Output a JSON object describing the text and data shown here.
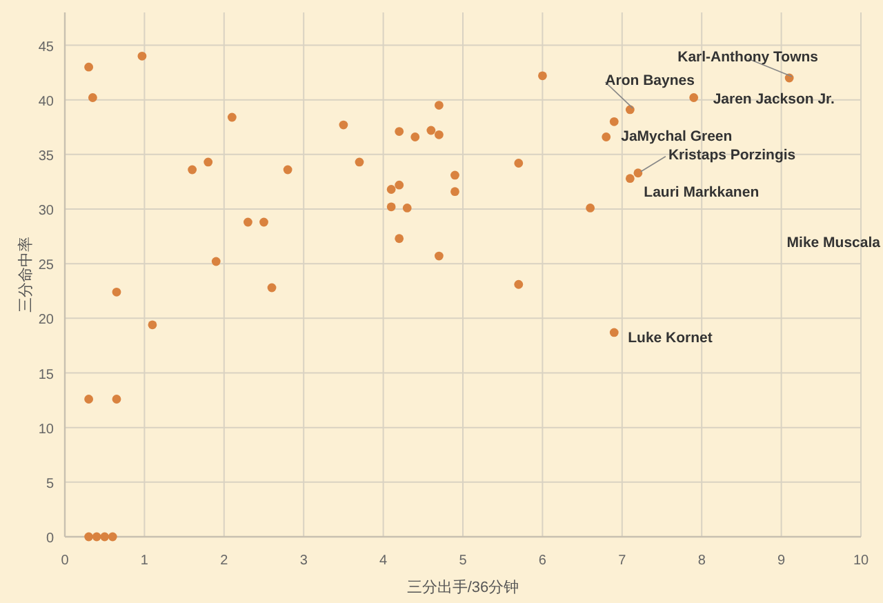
{
  "chart_data": {
    "type": "scatter",
    "xlabel": "三分出手/36分钟",
    "ylabel": "三分命中率",
    "xlim": [
      0,
      10
    ],
    "xticks": [
      0,
      1,
      2,
      3,
      4,
      5,
      6,
      7,
      8,
      9,
      10
    ],
    "ylim": [
      0,
      48
    ],
    "yticks": [
      0,
      5,
      10,
      15,
      20,
      25,
      30,
      35,
      40,
      45
    ],
    "grid": true,
    "marker": "circle",
    "series": [
      {
        "color": "#d9823f",
        "x": [
          0.3,
          0.35,
          0.97,
          0.65,
          1.1,
          0.3,
          0.65,
          0.3,
          0.4,
          0.5,
          0.6,
          1.6,
          1.8,
          1.9,
          2.1,
          2.3,
          2.5,
          2.6,
          2.8,
          3.5,
          3.7,
          4.1,
          4.1,
          4.2,
          4.2,
          4.2,
          4.3,
          4.4,
          4.6,
          4.7,
          4.7,
          4.7,
          4.9,
          4.9,
          5.7,
          5.7,
          6.0,
          6.6,
          6.8,
          6.9,
          7.1,
          7.9,
          7.1,
          7.2,
          6.9,
          9.1
        ],
        "values": [
          43,
          40.2,
          44,
          22.4,
          19.4,
          12.6,
          12.6,
          0,
          0,
          0,
          0,
          33.6,
          34.3,
          25.2,
          38.4,
          28.8,
          28.8,
          22.8,
          33.6,
          37.7,
          34.3,
          31.8,
          30.2,
          32.2,
          37.1,
          27.3,
          30.1,
          36.6,
          37.2,
          39.5,
          36.8,
          25.7,
          33.1,
          31.6,
          34.2,
          23.1,
          42.2,
          30.1,
          36.6,
          38.0,
          39.1,
          40.2,
          32.8,
          33.3,
          18.7,
          42.0
        ]
      }
    ],
    "annotations": [
      {
        "text": "Karl-Anthony Towns",
        "x": 9.1,
        "y": 42.0
      },
      {
        "text": "Aron Baynes",
        "x": 7.1,
        "y": 39.1
      },
      {
        "text": "Jaren Jackson Jr.",
        "x": 7.9,
        "y": 40.2
      },
      {
        "text": "JaMychal Green",
        "x": 6.9,
        "y": 38.0
      },
      {
        "text": "Kristaps Porzingis",
        "x": 7.2,
        "y": 33.3
      },
      {
        "text": "Lauri Markkanen",
        "x": 7.1,
        "y": 32.8
      },
      {
        "text": "Luke Kornet",
        "x": 6.9,
        "y": 18.7
      },
      "Mike Muscala"
    ]
  }
}
